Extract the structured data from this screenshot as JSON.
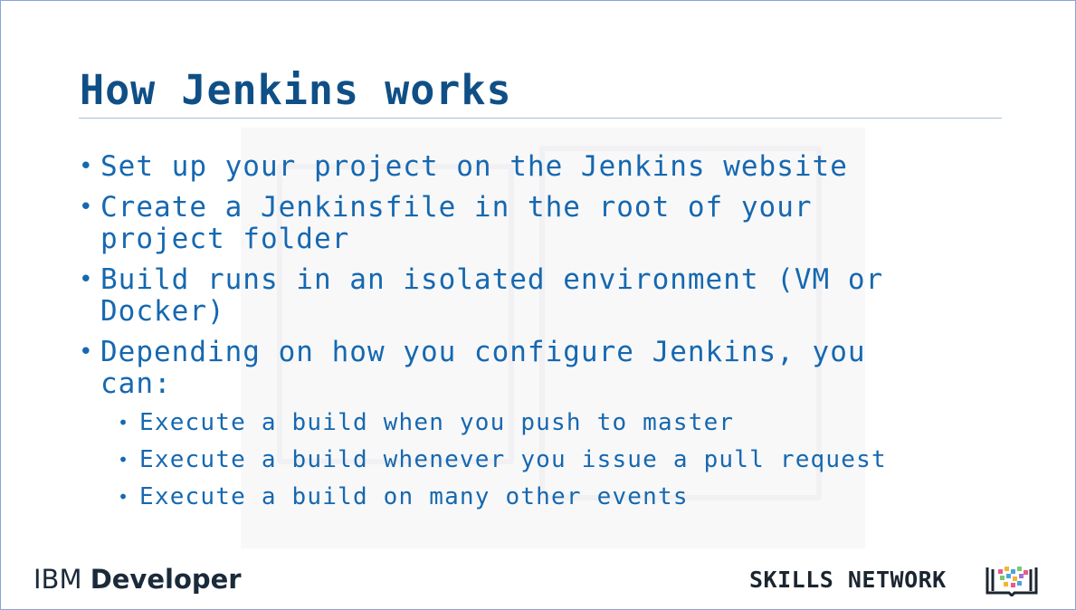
{
  "slide": {
    "title": "How Jenkins works",
    "bullets": [
      "Set up your project on the Jenkins website",
      "Create a Jenkinsfile in the root of your project folder",
      "Build runs in an isolated environment (VM or Docker)",
      "Depending on how you configure Jenkins, you can:"
    ],
    "sub_bullets": [
      "Execute a build when you push to master",
      "Execute a build whenever you issue a pull request",
      "Execute a build on many other events"
    ],
    "bullet_glyph": "•"
  },
  "footer": {
    "ibm_prefix": "IBM",
    "ibm_product": "Developer",
    "skills_network": "SKILLS NETWORK",
    "logo_icon": "book-pixels-icon"
  },
  "colors": {
    "title": "#0f4f86",
    "body_text": "#1668b0",
    "rule": "#a9c0d6",
    "border": "#8aa6d8"
  }
}
